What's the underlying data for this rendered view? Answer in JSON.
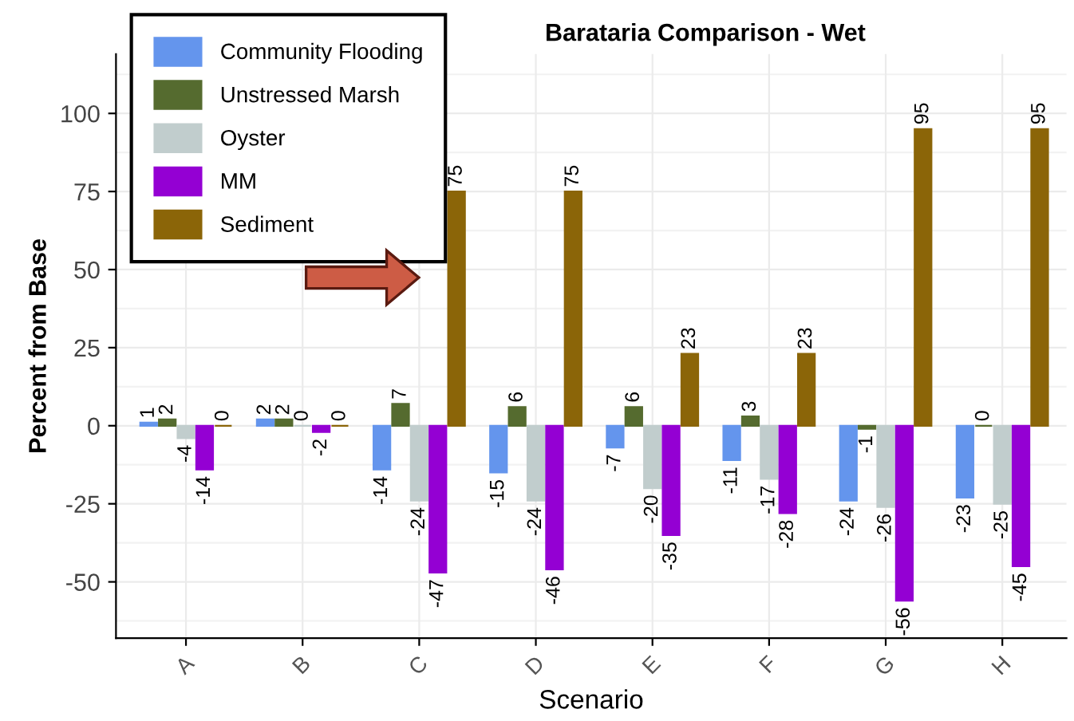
{
  "chart_data": {
    "type": "bar",
    "title": "Barataria Comparison - Wet",
    "xlabel": "Scenario",
    "ylabel": "Percent from Base",
    "categories": [
      "A",
      "B",
      "C",
      "D",
      "E",
      "F",
      "G",
      "H"
    ],
    "series": [
      {
        "name": "Community Flooding",
        "color": "#6495ed",
        "values": [
          1,
          2,
          -14,
          -15,
          -7,
          -11,
          -24,
          -23
        ]
      },
      {
        "name": "Unstressed Marsh",
        "color": "#556b2f",
        "values": [
          2,
          2,
          7,
          6,
          6,
          3,
          -1,
          0
        ]
      },
      {
        "name": "Oyster",
        "color": "#c1cdcd",
        "values": [
          -4,
          0,
          -24,
          -24,
          -20,
          -17,
          -26,
          -25
        ]
      },
      {
        "name": "MM",
        "color": "#9400d3",
        "values": [
          -14,
          -2,
          -47,
          -46,
          -35,
          -28,
          -56,
          -45
        ]
      },
      {
        "name": "Sediment",
        "color": "#8b6508",
        "values": [
          0,
          0,
          75,
          75,
          23,
          23,
          95,
          95
        ]
      }
    ],
    "ylim": [
      -68,
      119
    ],
    "yticks": [
      -50,
      -25,
      0,
      25,
      50,
      75,
      100
    ],
    "grid": true,
    "legend": "top left",
    "data_labels": true
  }
}
